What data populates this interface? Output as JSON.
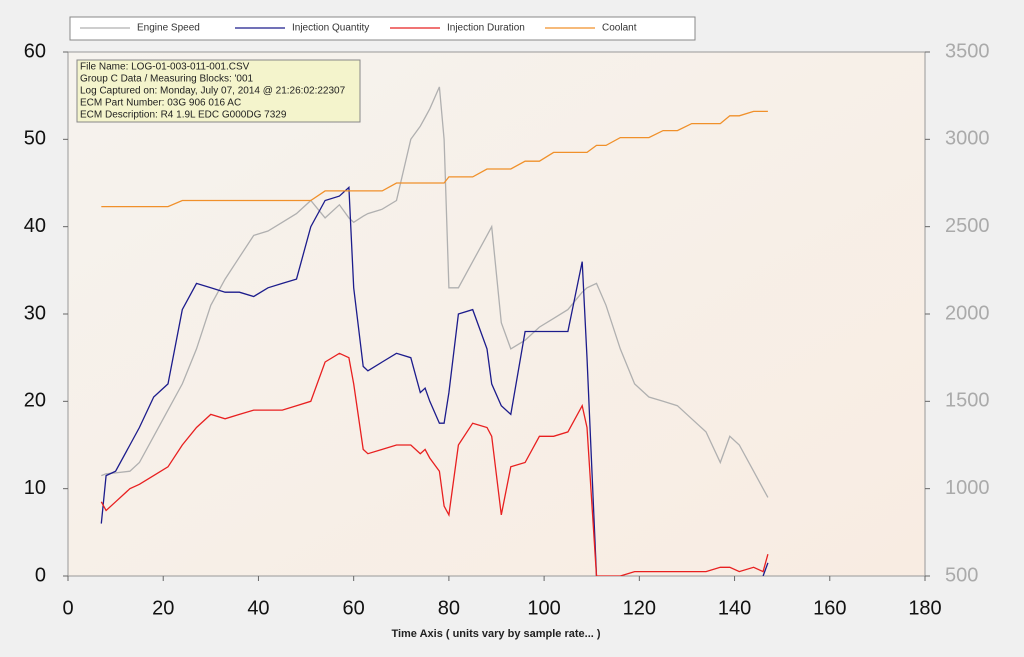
{
  "chart_data": {
    "type": "line",
    "xlabel": "Time Axis ( units vary by sample rate... )",
    "annotations": [
      "File Name: LOG-01-003-011-001.CSV",
      "Group C Data / Measuring Blocks: '001",
      "Log Captured on: Monday, July 07, 2014 @ 21:26:02:22307",
      "ECM Part Number: 03G 906 016 AC",
      "ECM Description: R4 1.9L EDC G000DG  7329"
    ],
    "x": [
      7,
      8,
      10,
      13,
      15,
      18,
      21,
      24,
      27,
      30,
      33,
      36,
      39,
      42,
      45,
      48,
      51,
      54,
      57,
      59,
      60,
      62,
      63,
      66,
      69,
      72,
      74,
      75,
      76,
      78,
      79,
      80,
      82,
      85,
      88,
      89,
      91,
      93,
      96,
      99,
      102,
      105,
      108,
      109,
      111,
      113,
      116,
      119,
      122,
      125,
      128,
      131,
      134,
      137,
      139,
      141,
      144,
      146,
      147
    ],
    "series": [
      {
        "name": "Engine Speed",
        "color": "#b0b0b0",
        "axis": "y2",
        "values": [
          1075,
          1085,
          1090,
          1100,
          1150,
          1300,
          1450,
          1600,
          1800,
          2050,
          2200,
          2325,
          2450,
          2475,
          2525,
          2575,
          2650,
          2550,
          2625,
          2550,
          2525,
          2560,
          2575,
          2600,
          2650,
          3000,
          3075,
          3125,
          3175,
          3300,
          3000,
          2150,
          2150,
          2300,
          2450,
          2500,
          1950,
          1800,
          1850,
          1925,
          1975,
          2025,
          2125,
          2150,
          2175,
          2050,
          1800,
          1600,
          1525,
          1500,
          1475,
          1400,
          1325,
          1150,
          1300,
          1250,
          1100,
          1000,
          950
        ]
      },
      {
        "name": "Injection Quantity",
        "color": "#1c1c8c",
        "values": [
          6,
          11.5,
          12,
          15,
          17,
          20.5,
          22,
          30.5,
          33.5,
          33,
          32.5,
          32.5,
          32,
          33,
          33.5,
          34,
          40,
          43,
          43.5,
          44.5,
          33,
          24,
          23.5,
          24.5,
          25.5,
          25,
          21,
          21.5,
          20,
          17.5,
          17.5,
          21,
          30,
          30.5,
          26,
          22,
          19.5,
          18.5,
          28,
          28,
          28,
          28,
          36,
          25,
          0,
          null,
          null,
          null,
          null,
          null,
          null,
          null,
          null,
          null,
          null,
          null,
          null,
          0,
          1.5
        ]
      },
      {
        "name": "Injection Duration",
        "color": "#e82020",
        "values": [
          8.5,
          7.5,
          8.5,
          10,
          10.5,
          11.5,
          12.5,
          15,
          17,
          18.5,
          18,
          18.5,
          19,
          19,
          19,
          19.5,
          20,
          24.5,
          25.5,
          25,
          22,
          14.5,
          14,
          14.5,
          15,
          15,
          14,
          14.5,
          13.5,
          12,
          8,
          7,
          15,
          17.5,
          17,
          16,
          7,
          12.5,
          13,
          16,
          16,
          16.5,
          19.5,
          17,
          0,
          0,
          0,
          0.5,
          0.5,
          0.5,
          0.5,
          0.5,
          0.5,
          1,
          1,
          0.5,
          1,
          0.5,
          2.5
        ]
      },
      {
        "name": "Coolant",
        "color": "#f0902a",
        "values": [
          42.3,
          42.3,
          42.3,
          42.3,
          42.3,
          42.3,
          42.3,
          43,
          43,
          43,
          43,
          43,
          43,
          43,
          43,
          43,
          43,
          44.1,
          44.1,
          44.1,
          44.1,
          44.1,
          44.1,
          44.1,
          45,
          45,
          45,
          45,
          45,
          45,
          45,
          45.7,
          45.7,
          45.7,
          46.6,
          46.6,
          46.6,
          46.6,
          47.5,
          47.5,
          48.5,
          48.5,
          48.5,
          48.5,
          49.3,
          49.3,
          50.2,
          50.2,
          50.2,
          51,
          51,
          51.8,
          51.8,
          51.8,
          52.7,
          52.7,
          53.2,
          53.2,
          53.2
        ]
      }
    ],
    "xlim": [
      0,
      180
    ],
    "xticks": [
      0,
      20,
      40,
      60,
      80,
      100,
      120,
      140,
      160,
      180
    ],
    "ylim": [
      0,
      60
    ],
    "yticks": [
      0,
      10,
      20,
      30,
      40,
      50,
      60
    ],
    "y2lim": [
      500,
      3500
    ],
    "y2ticks": [
      500,
      1000,
      1500,
      2000,
      2500,
      3000,
      3500
    ]
  }
}
